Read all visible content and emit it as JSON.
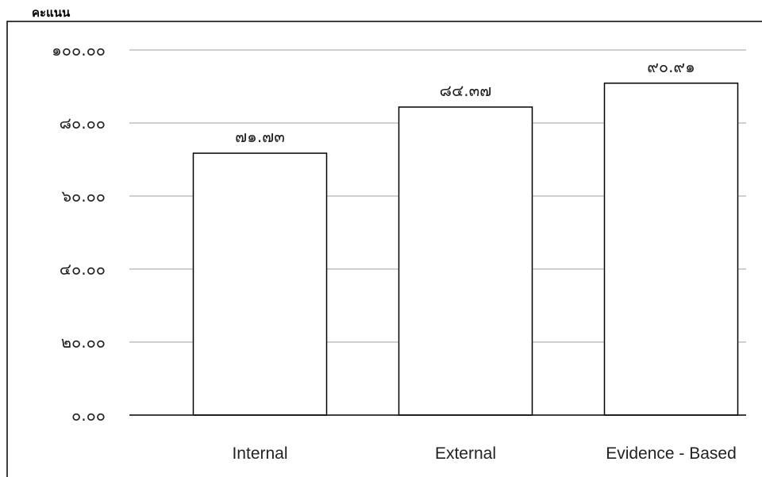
{
  "chart_data": {
    "type": "bar",
    "ylabel": "คะแนน",
    "categories": [
      "Internal",
      "External",
      "Evidence - Based"
    ],
    "values": [
      71.73,
      84.37,
      90.91
    ],
    "value_labels": [
      "๗๑.๗๓",
      "๘๔.๓๗",
      "๙๐.๙๑"
    ],
    "ylim": [
      0,
      100
    ],
    "yticks": [
      0,
      20,
      40,
      60,
      80,
      100
    ],
    "ytick_labels": [
      "๐.๐๐",
      "๒๐.๐๐",
      "๔๐.๐๐",
      "๖๐.๐๐",
      "๘๐.๐๐",
      "๑๐๐.๐๐"
    ],
    "grid": true,
    "legend": "none",
    "colors": {
      "bar_fill": "#ffffff",
      "bar_stroke": "#000000",
      "grid": "#bfbfbf",
      "axis": "#000000",
      "frame": "#000000"
    }
  }
}
